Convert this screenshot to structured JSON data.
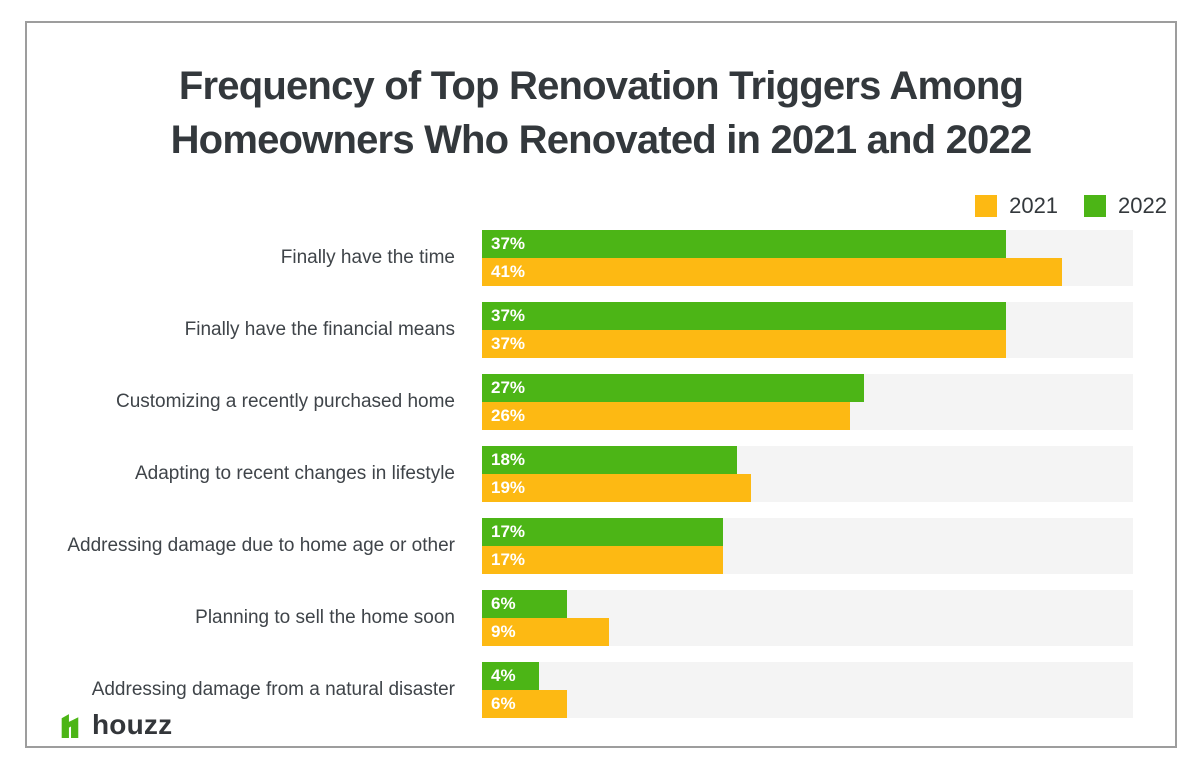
{
  "title": {
    "line1": "Frequency of Top Renovation Triggers Among",
    "line2": "Homeowners Who Renovated in 2021 and 2022"
  },
  "legend": {
    "items": [
      {
        "label": "2021",
        "color": "#FDB913"
      },
      {
        "label": "2022",
        "color": "#4CB516"
      }
    ]
  },
  "chart_data": {
    "type": "bar",
    "orientation": "horizontal",
    "title": "Frequency of Top Renovation Triggers Among Homeowners Who Renovated in 2021 and 2022",
    "categories": [
      "Finally have the time",
      "Finally have the financial means",
      "Customizing a recently purchased home",
      "Adapting to recent changes in lifestyle",
      "Addressing damage due to home age or other",
      "Planning to sell the home soon",
      "Addressing damage from a natural disaster"
    ],
    "series": [
      {
        "name": "2022",
        "color": "#4CB516",
        "values": [
          37,
          37,
          27,
          18,
          17,
          6,
          4
        ],
        "labels": [
          "37%",
          "37%",
          "27%",
          "18%",
          "17%",
          "6%",
          "4%"
        ]
      },
      {
        "name": "2021",
        "color": "#FDB913",
        "values": [
          41,
          37,
          26,
          19,
          17,
          9,
          6
        ],
        "labels": [
          "41%",
          "37%",
          "26%",
          "19%",
          "17%",
          "9%",
          "6%"
        ]
      }
    ],
    "value_suffix": "%",
    "xlim": [
      0,
      46
    ],
    "grid": false,
    "legend_position": "top-right",
    "track_color": "#f4f4f4"
  },
  "logo": {
    "text": "houzz",
    "icon_color": "#4CB516"
  }
}
